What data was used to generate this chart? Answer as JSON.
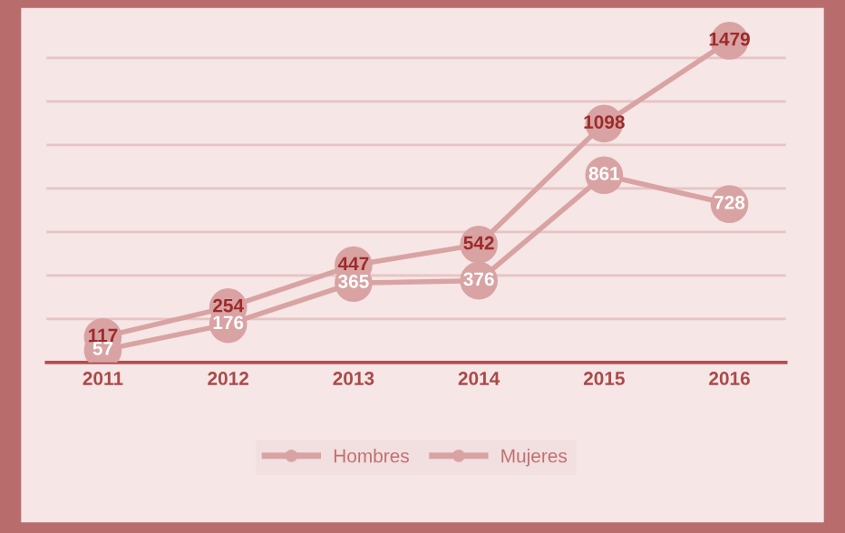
{
  "chart_data": {
    "type": "line",
    "categories": [
      "2011",
      "2012",
      "2013",
      "2014",
      "2015",
      "2016"
    ],
    "series": [
      {
        "name": "Hombres",
        "color": "#d9a3a3",
        "values": [
          117,
          254,
          447,
          542,
          1098,
          1479
        ]
      },
      {
        "name": "Mujeres",
        "color": "#d9a3a3",
        "values": [
          57,
          176,
          365,
          376,
          861,
          728
        ]
      }
    ],
    "yticks": [
      {
        "value": 0,
        "label": null
      },
      {
        "value": 200,
        "label": null
      },
      {
        "value": 400,
        "label": null
      },
      {
        "value": 600,
        "label": null
      },
      {
        "value": 800,
        "label": null
      },
      {
        "value": 1000,
        "label": null
      },
      {
        "value": 1200,
        "label": null
      },
      {
        "value": 1400,
        "label": null
      }
    ],
    "tick_labels": "x",
    "grid": "y",
    "legend": "bottom",
    "marker": "circle",
    "line_style": "solid",
    "data_labels": true
  }
}
